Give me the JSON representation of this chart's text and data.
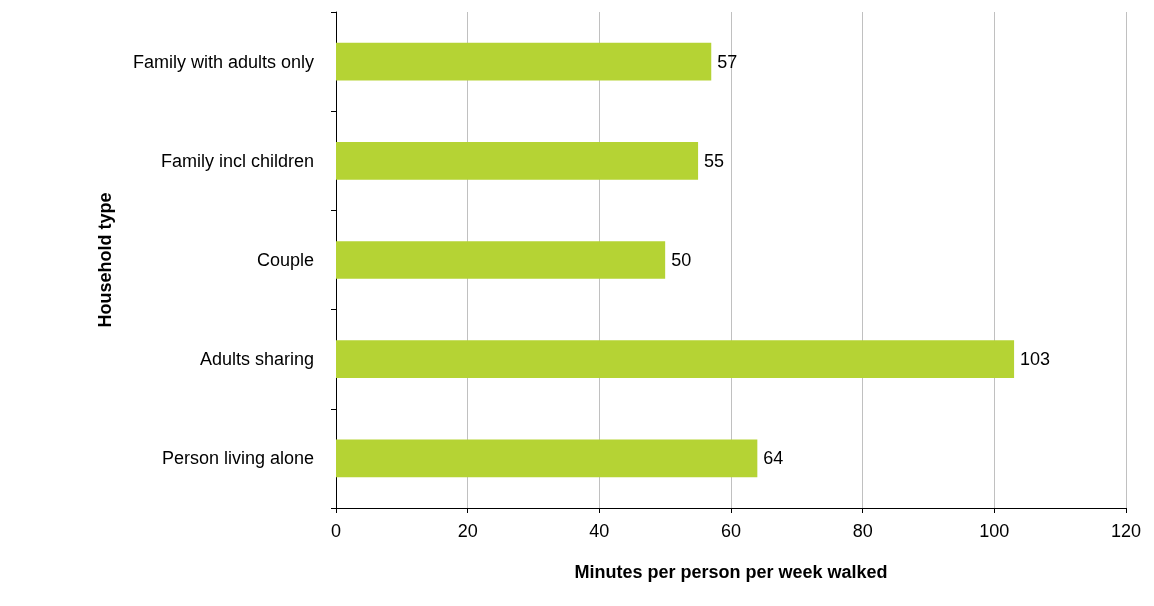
{
  "chart_data": {
    "type": "bar",
    "orientation": "horizontal",
    "xlabel": "Minutes per person per week walked",
    "ylabel": "Household type",
    "categories": [
      "Family with adults only",
      "Family incl children",
      "Couple",
      "Adults sharing",
      "Person living alone"
    ],
    "values": [
      57,
      55,
      50,
      103,
      64
    ],
    "color": "#b5d334",
    "data_labels": true,
    "xlim": [
      0,
      120
    ],
    "xticks": [
      0,
      20,
      40,
      60,
      80,
      100,
      120
    ],
    "grid": "x"
  }
}
